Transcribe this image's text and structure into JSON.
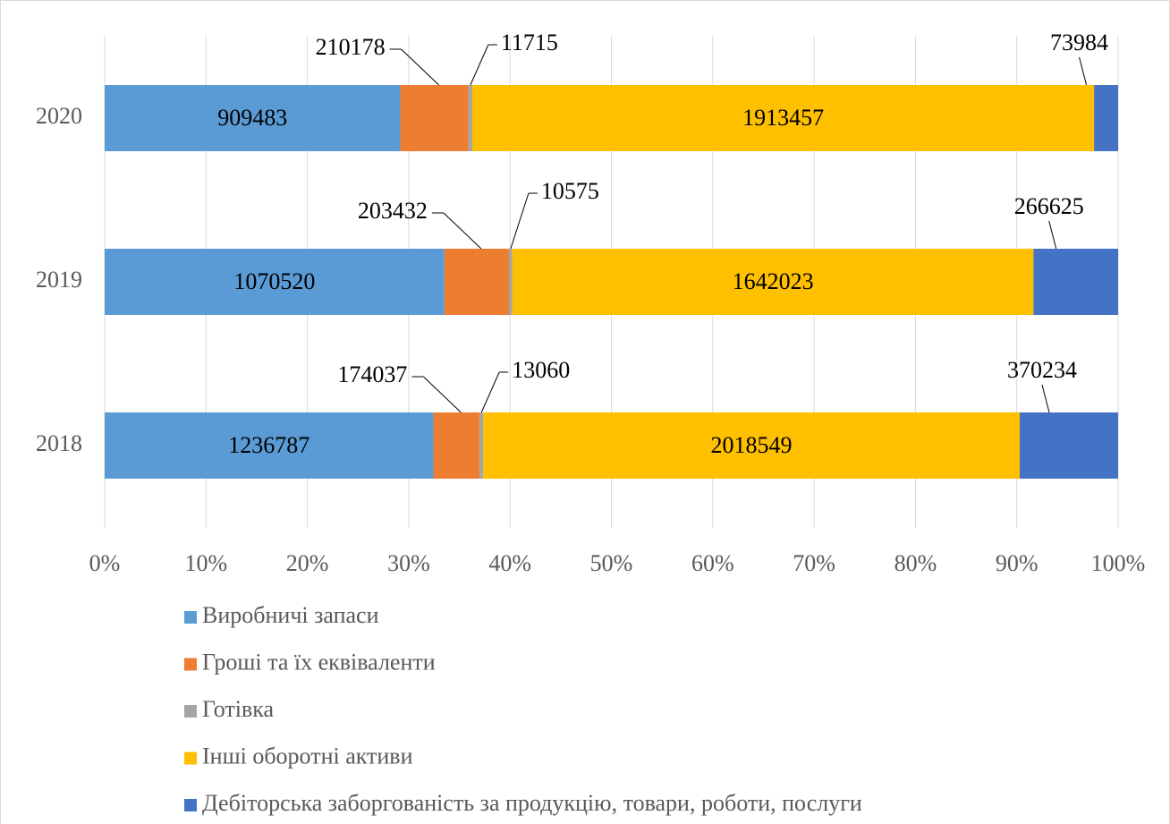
{
  "chart_data": {
    "type": "bar",
    "orientation": "horizontal",
    "stacking": "percent",
    "categories": [
      "2018",
      "2019",
      "2020"
    ],
    "series": [
      {
        "name": "Виробничі запаси",
        "color": "#5b9bd5",
        "values": [
          1236787,
          1070520,
          909483
        ]
      },
      {
        "name": "Гроші та їх еквіваленти",
        "color": "#ed7d31",
        "values": [
          174037,
          203432,
          210178
        ]
      },
      {
        "name": "Готівка",
        "color": "#a5a5a5",
        "values": [
          13060,
          10575,
          11715
        ]
      },
      {
        "name": "Інші оборотні активи",
        "color": "#ffc000",
        "values": [
          2018549,
          1642023,
          1913457
        ]
      },
      {
        "name": "Дебіторська заборгованість за продукцію, товари, роботи, послуги",
        "color": "#4472c4",
        "values": [
          370234,
          266625,
          73984
        ]
      }
    ],
    "xlim": [
      0,
      100
    ],
    "xticks": [
      {
        "value": 0,
        "label": "0%"
      },
      {
        "value": 10,
        "label": "10%"
      },
      {
        "value": 20,
        "label": "20%"
      },
      {
        "value": 30,
        "label": "30%"
      },
      {
        "value": 40,
        "label": "40%"
      },
      {
        "value": 50,
        "label": "50%"
      },
      {
        "value": 60,
        "label": "60%"
      },
      {
        "value": 70,
        "label": "70%"
      },
      {
        "value": 80,
        "label": "80%"
      },
      {
        "value": 90,
        "label": "90%"
      },
      {
        "value": 100,
        "label": "100%"
      }
    ],
    "grid": true,
    "legend": "bottom"
  }
}
